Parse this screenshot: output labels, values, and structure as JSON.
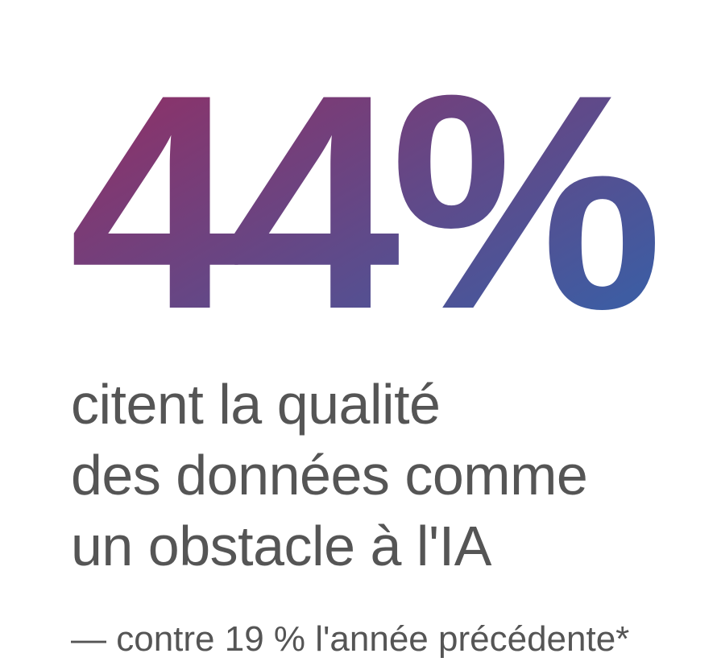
{
  "stat": {
    "value": "44%",
    "gradient_start": "#9b2a5e",
    "gradient_end": "#2f64ad"
  },
  "description": {
    "line1": "citent la qualité",
    "line2": "des données comme",
    "line3": "un obstacle à l'IA"
  },
  "footnote": {
    "text": "— contre 19 % l'année précédente*"
  }
}
